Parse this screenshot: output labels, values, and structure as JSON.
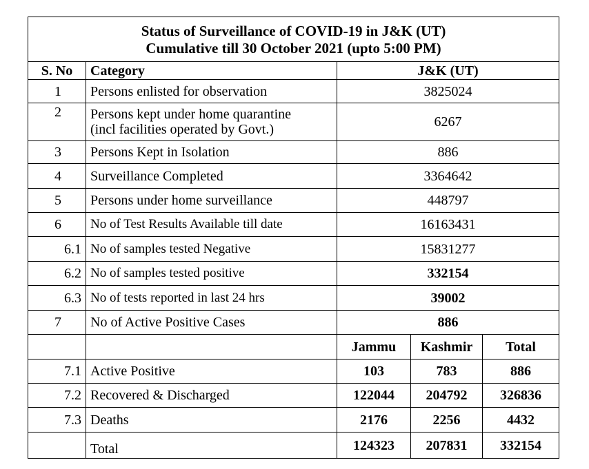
{
  "title_line1": "Status of Surveillance of COVID-19 in J&K (UT)",
  "title_line2": "Cumulative till 30 October 2021 (upto 5:00 PM)",
  "headers": {
    "sno": "S. No",
    "category": "Category",
    "value": "J&K (UT)"
  },
  "rows": [
    {
      "sno": "1",
      "category": "Persons enlisted for observation",
      "value": "3825024"
    },
    {
      "sno": "2",
      "category": "Persons kept under home quarantine",
      "category2": "(incl facilities operated by Govt.)",
      "value": "6267"
    },
    {
      "sno": "3",
      "category": "Persons Kept in Isolation",
      "value": "886"
    },
    {
      "sno": "4",
      "category": "Surveillance  Completed",
      "value": "3364642"
    },
    {
      "sno": "5",
      "category": "Persons under home surveillance",
      "value": "448797"
    },
    {
      "sno": "6",
      "category": "No of Test Results Available till date",
      "value": "16163431"
    },
    {
      "sno": "6.1",
      "category": "No of samples tested Negative",
      "value": "15831277"
    },
    {
      "sno": "6.2",
      "category": "No of samples tested positive",
      "value": "332154"
    },
    {
      "sno": "6.3",
      "category": "No of tests reported in last 24 hrs",
      "value": "39002"
    },
    {
      "sno": "7",
      "category": "No of Active Positive Cases",
      "value": "886"
    }
  ],
  "region_headers": {
    "jammu": "Jammu",
    "kashmir": "Kashmir",
    "total": "Total"
  },
  "region_rows": [
    {
      "sno": "7.1",
      "category": "Active Positive",
      "jammu": "103",
      "kashmir": "783",
      "total": "886"
    },
    {
      "sno": "7.2",
      "category": "Recovered & Discharged",
      "jammu": "122044",
      "kashmir": "204792",
      "total": "326836"
    },
    {
      "sno": "7.3",
      "category": "Deaths",
      "jammu": "2176",
      "kashmir": "2256",
      "total": "4432"
    },
    {
      "sno": "",
      "category": "Total",
      "jammu": "124323",
      "kashmir": "207831",
      "total": "332154"
    }
  ]
}
